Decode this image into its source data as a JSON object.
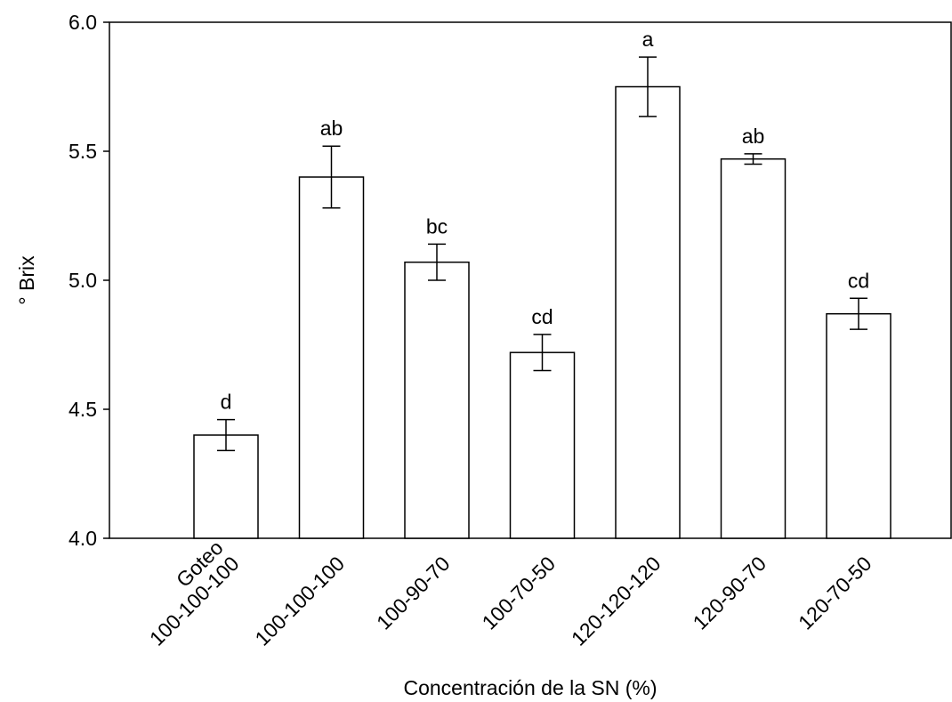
{
  "chart_data": {
    "type": "bar",
    "xlabel": "Concentración de la SN (%)",
    "ylabel": "° Brix",
    "categories": [
      "Goteo\n100-100-100",
      "100-100-100",
      "100-90-70",
      "100-70-50",
      "120-120-120",
      "120-90-70",
      "120-70-50"
    ],
    "values": [
      4.4,
      5.4,
      5.07,
      4.72,
      5.75,
      5.47,
      4.87
    ],
    "errors": [
      0.06,
      0.12,
      0.07,
      0.07,
      0.115,
      0.02,
      0.06
    ],
    "value_labels": [
      "d",
      "ab",
      "bc",
      "cd",
      "a",
      "ab",
      "cd"
    ],
    "color": "#ffffff",
    "ylim": [
      4.0,
      6.0
    ],
    "yticks": [
      {
        "value": 4.0,
        "label": "4.0"
      },
      {
        "value": 4.5,
        "label": "4.5"
      },
      {
        "value": 5.0,
        "label": "5.0"
      },
      {
        "value": 5.5,
        "label": "5.5"
      },
      {
        "value": 6.0,
        "label": "6.0"
      }
    ]
  }
}
